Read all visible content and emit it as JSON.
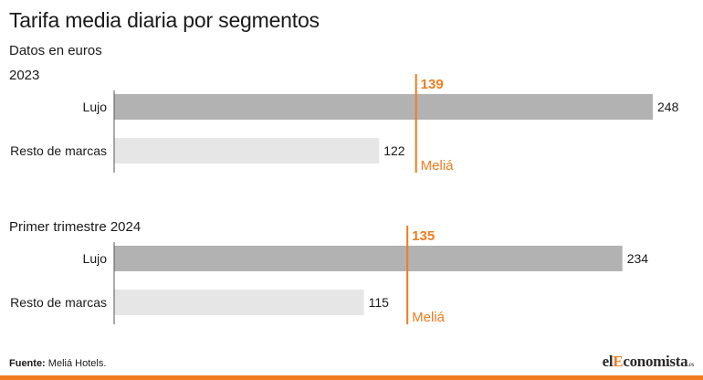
{
  "title": "Tarifa media diaria por segmentos",
  "subtitle": "Datos en euros",
  "footer": {
    "label": "Fuente:",
    "text": "Meliá Hotels."
  },
  "brand": {
    "prefix": "el",
    "accent": "E",
    "rest": "conomista",
    "suffix": ".es"
  },
  "colors": {
    "luxury": "#b2b2b2",
    "rest": "#e6e6e6",
    "melia": "#f07c1e",
    "axis": "#555555"
  },
  "chart_data": [
    {
      "type": "bar",
      "orientation": "horizontal",
      "section_label": "2023",
      "categories": [
        "Lujo",
        "Resto de marcas"
      ],
      "values": [
        248,
        122
      ],
      "reference_line": {
        "label": "Meliá",
        "value": 139
      }
    },
    {
      "type": "bar",
      "orientation": "horizontal",
      "section_label": "Primer trimestre 2024",
      "categories": [
        "Lujo",
        "Resto de marcas"
      ],
      "values": [
        234,
        115
      ],
      "reference_line": {
        "label": "Meliá",
        "value": 135
      }
    }
  ]
}
